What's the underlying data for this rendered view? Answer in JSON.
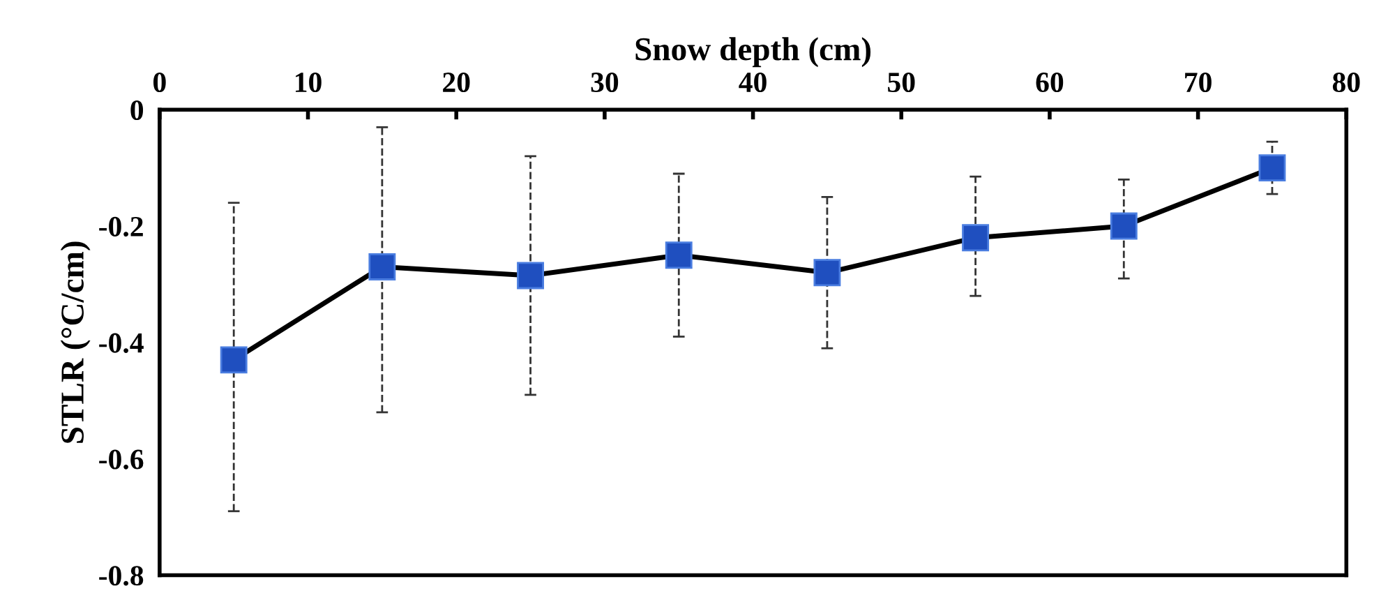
{
  "chart_data": {
    "type": "line",
    "xlabel": "Snow depth (cm)",
    "ylabel": "STLR (°C/cm)",
    "x": [
      5,
      15,
      25,
      35,
      45,
      55,
      65,
      75
    ],
    "series": [
      {
        "color": "#1f4fbf",
        "values": [
          -0.43,
          -0.27,
          -0.285,
          -0.25,
          -0.28,
          -0.22,
          -0.2,
          -0.1
        ],
        "errors": [
          [
            -0.69,
            -0.16
          ],
          [
            -0.52,
            -0.03
          ],
          [
            -0.49,
            -0.08
          ],
          [
            -0.39,
            -0.11
          ],
          [
            -0.41,
            -0.15
          ],
          [
            -0.32,
            -0.115
          ],
          [
            -0.29,
            -0.12
          ],
          [
            -0.145,
            -0.055
          ]
        ]
      }
    ],
    "xlim": [
      0,
      80
    ],
    "xticks": [
      0,
      10,
      20,
      30,
      40,
      50,
      60,
      70,
      80
    ],
    "ylim": [
      -0.8,
      0
    ],
    "yticks": [
      -0.8,
      -0.6,
      -0.4,
      -0.2,
      0
    ],
    "marker": "square",
    "line_style": "solid"
  }
}
